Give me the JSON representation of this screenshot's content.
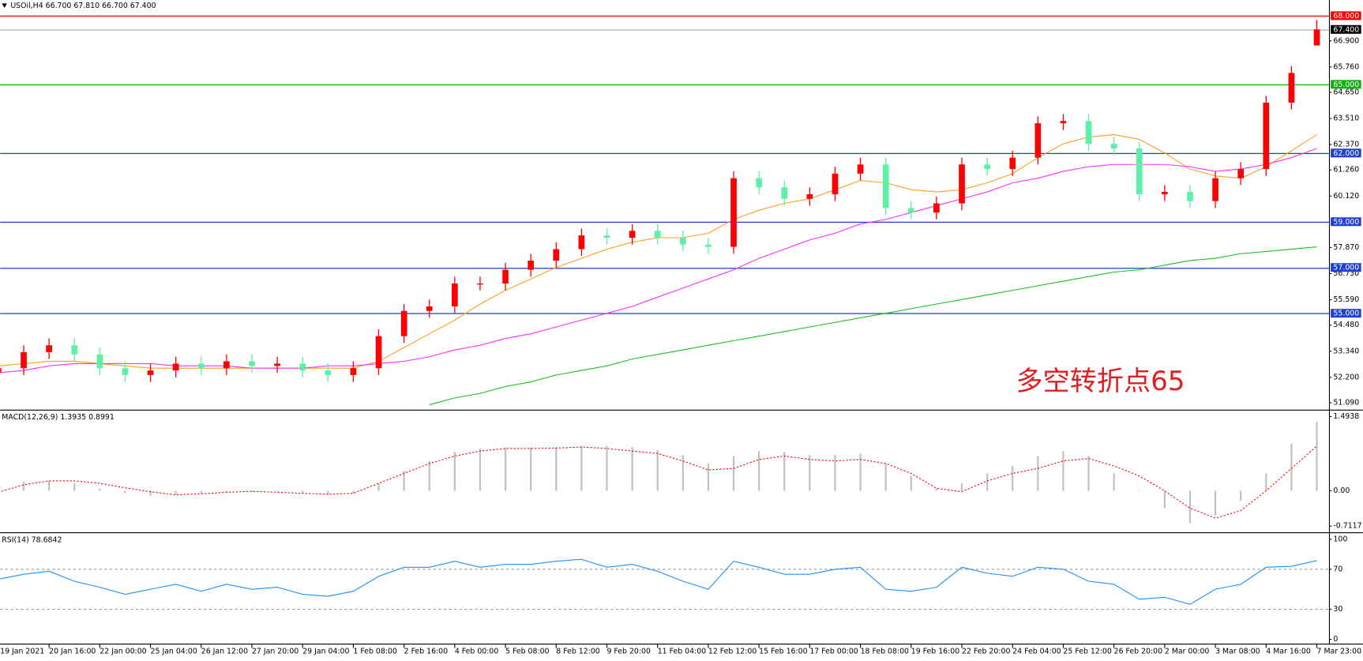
{
  "chart_data": [
    {
      "type": "candlestick",
      "title": "USOil,H4  66.700 67.810 66.700 67.400",
      "annotation": "多空转折点65",
      "categories": [
        "19 Jan 2021",
        null,
        "20 Jan 16:00",
        null,
        "22 Jan 00:00",
        null,
        "25 Jan 04:00",
        null,
        "26 Jan 12:00",
        null,
        "27 Jan 20:00",
        null,
        "29 Jan 04:00",
        null,
        "1 Feb 08:00",
        null,
        "2 Feb 16:00",
        null,
        "4 Feb 00:00",
        null,
        "5 Feb 08:00",
        null,
        "8 Feb 12:00",
        null,
        "9 Feb 20:00",
        null,
        "11 Feb 04:00",
        null,
        "12 Feb 12:00",
        null,
        "15 Feb 16:00",
        null,
        "17 Feb 00:00",
        null,
        "18 Feb 08:00",
        null,
        "19 Feb 16:00",
        null,
        "22 Feb 20:00",
        null,
        "24 Feb 04:00",
        null,
        "25 Feb 12:00",
        null,
        "26 Feb 20:00",
        null,
        "2 Mar 00:00",
        null,
        "3 Mar 08:00",
        null,
        "4 Mar 16:00",
        null,
        "7 Mar 23:00"
      ],
      "open": [
        52.4,
        52.6,
        53.3,
        53.6,
        53.2,
        52.6,
        52.3,
        52.5,
        52.8,
        52.6,
        52.9,
        52.7,
        52.8,
        52.5,
        52.3,
        52.6,
        54.0,
        55.1,
        55.3,
        56.3,
        56.3,
        56.9,
        57.3,
        57.8,
        58.4,
        58.3,
        58.6,
        58.3,
        58.0,
        57.9,
        60.9,
        60.5,
        60.0,
        60.2,
        61.1,
        61.5,
        59.6,
        59.4,
        59.8,
        61.5,
        61.3,
        61.8,
        63.3,
        63.4,
        62.4,
        62.2,
        60.2,
        60.3,
        59.9,
        60.9,
        61.3,
        64.2,
        66.7
      ],
      "high": [
        52.9,
        53.6,
        53.9,
        53.9,
        53.5,
        52.9,
        52.8,
        53.1,
        53.1,
        53.2,
        53.2,
        53.1,
        53.1,
        52.8,
        52.9,
        54.3,
        55.4,
        55.6,
        56.6,
        56.6,
        57.2,
        57.6,
        58.1,
        58.7,
        58.7,
        58.9,
        58.9,
        58.6,
        58.3,
        61.2,
        61.2,
        60.8,
        60.5,
        61.4,
        61.8,
        61.8,
        59.9,
        60.1,
        61.8,
        61.8,
        62.1,
        63.6,
        63.7,
        63.7,
        62.7,
        62.5,
        60.6,
        60.6,
        61.2,
        61.6,
        64.5,
        65.8,
        67.81
      ],
      "low": [
        52.1,
        52.3,
        53.0,
        52.9,
        52.3,
        52.0,
        52.0,
        52.2,
        52.3,
        52.3,
        52.4,
        52.4,
        52.2,
        52.0,
        52.0,
        52.3,
        53.7,
        54.8,
        55.0,
        56.0,
        56.0,
        56.6,
        57.0,
        57.5,
        58.0,
        58.0,
        58.0,
        57.7,
        57.6,
        57.6,
        60.2,
        59.7,
        59.7,
        59.9,
        60.8,
        59.3,
        59.1,
        59.1,
        59.5,
        61.0,
        61.0,
        61.5,
        63.0,
        62.1,
        61.9,
        59.9,
        59.9,
        59.6,
        59.6,
        60.6,
        61.0,
        63.9,
        66.7
      ],
      "close": [
        52.6,
        53.3,
        53.6,
        53.2,
        52.6,
        52.3,
        52.5,
        52.8,
        52.6,
        52.9,
        52.7,
        52.8,
        52.5,
        52.3,
        52.6,
        54.0,
        55.1,
        55.3,
        56.3,
        56.3,
        56.9,
        57.3,
        57.8,
        58.4,
        58.3,
        58.6,
        58.3,
        58.0,
        57.9,
        60.9,
        60.5,
        60.0,
        60.2,
        61.1,
        61.5,
        59.6,
        59.4,
        59.8,
        61.5,
        61.3,
        61.8,
        63.3,
        63.4,
        62.4,
        62.2,
        60.2,
        60.3,
        59.9,
        60.9,
        61.3,
        64.2,
        65.5,
        67.4
      ],
      "up_color": "#ff0000",
      "down_color": "#5ef0a6",
      "overlays": [
        {
          "color": "#ffa020",
          "values": [
            52.7,
            52.8,
            52.9,
            52.9,
            52.8,
            52.7,
            52.6,
            52.6,
            52.6,
            52.6,
            52.6,
            52.6,
            52.6,
            52.6,
            52.6,
            52.9,
            53.5,
            54.1,
            54.7,
            55.4,
            56.0,
            56.5,
            57.0,
            57.4,
            57.8,
            58.1,
            58.3,
            58.3,
            58.5,
            59.1,
            59.5,
            59.8,
            60.0,
            60.4,
            60.8,
            60.7,
            60.4,
            60.3,
            60.4,
            60.7,
            61.1,
            61.8,
            62.4,
            62.7,
            62.8,
            62.6,
            62.0,
            61.3,
            61.0,
            60.9,
            61.4,
            62.1,
            62.8
          ]
        },
        {
          "color": "#ff30ff",
          "values": [
            52.4,
            52.5,
            52.7,
            52.8,
            52.8,
            52.8,
            52.8,
            52.7,
            52.7,
            52.7,
            52.6,
            52.6,
            52.6,
            52.7,
            52.7,
            52.8,
            52.9,
            53.1,
            53.4,
            53.6,
            53.9,
            54.1,
            54.4,
            54.7,
            55.0,
            55.3,
            55.7,
            56.1,
            56.5,
            56.9,
            57.4,
            57.8,
            58.2,
            58.5,
            58.9,
            59.1,
            59.4,
            59.7,
            60.0,
            60.3,
            60.7,
            60.9,
            61.2,
            61.4,
            61.5,
            61.5,
            61.5,
            61.4,
            61.2,
            61.3,
            61.5,
            61.8,
            62.2
          ]
        },
        {
          "color": "#20c020",
          "values": [
            null,
            null,
            null,
            null,
            null,
            null,
            null,
            null,
            null,
            null,
            null,
            null,
            null,
            null,
            null,
            null,
            null,
            51.0,
            51.3,
            51.5,
            51.8,
            52.0,
            52.3,
            52.5,
            52.7,
            53.0,
            53.2,
            53.4,
            53.6,
            53.8,
            54.0,
            54.2,
            54.4,
            54.6,
            54.8,
            55.0,
            55.2,
            55.4,
            55.6,
            55.8,
            56.0,
            56.2,
            56.4,
            56.6,
            56.8,
            56.9,
            57.1,
            57.3,
            57.4,
            57.6,
            57.7,
            57.8,
            57.9
          ]
        }
      ],
      "levels": [
        {
          "value": 68.0,
          "label": "68.000",
          "color": "#ff0000",
          "box": "#ff0000"
        },
        {
          "value": 67.4,
          "label": "67.400",
          "color": "#a8b0b8",
          "box": "#000000"
        },
        {
          "value": 65.0,
          "label": "65.000",
          "color": "#10b010",
          "box": "#10b010"
        },
        {
          "value": 62.0,
          "label": "62.000",
          "color": "#2040d0",
          "box": "#2040d0"
        },
        {
          "value": 59.0,
          "label": "59.000",
          "color": "#2040d0",
          "box": "#2040d0"
        },
        {
          "value": 57.0,
          "label": "57.000",
          "color": "#2040d0",
          "box": "#2040d0"
        },
        {
          "value": 55.0,
          "label": "55.000",
          "color": "#2040d0",
          "box": "#2040d0"
        }
      ],
      "ylim": [
        50.826,
        68.686
      ],
      "yticks": [
        {
          "value": 66.9,
          "label": "66.900"
        },
        {
          "value": 65.76,
          "label": "65.760"
        },
        {
          "value": 64.65,
          "label": "64.650"
        },
        {
          "value": 63.51,
          "label": "63.510"
        },
        {
          "value": 62.37,
          "label": "62.370"
        },
        {
          "value": 61.26,
          "label": "61.260"
        },
        {
          "value": 60.12,
          "label": "60.120"
        },
        {
          "value": 57.87,
          "label": "57.870"
        },
        {
          "value": 56.73,
          "label": "56.730"
        },
        {
          "value": 55.59,
          "label": "55.590"
        },
        {
          "value": 54.48,
          "label": "54.480"
        },
        {
          "value": 53.34,
          "label": "53.340"
        },
        {
          "value": 52.2,
          "label": "52.200"
        },
        {
          "value": 51.09,
          "label": "51.090"
        }
      ]
    },
    {
      "type": "macd",
      "title": "MACD(12,26,9) 1.3935 0.8991",
      "histogram": [
        0.12,
        0.18,
        0.2,
        0.15,
        0.05,
        -0.05,
        -0.1,
        -0.08,
        -0.05,
        -0.03,
        -0.02,
        -0.02,
        -0.05,
        -0.08,
        -0.05,
        0.15,
        0.4,
        0.6,
        0.78,
        0.85,
        0.87,
        0.87,
        0.88,
        0.9,
        0.9,
        0.88,
        0.82,
        0.72,
        0.55,
        0.7,
        0.8,
        0.78,
        0.72,
        0.72,
        0.75,
        0.55,
        0.3,
        0.05,
        0.15,
        0.35,
        0.5,
        0.7,
        0.8,
        0.7,
        0.35,
        0.0,
        -0.35,
        -0.65,
        -0.5,
        -0.2,
        0.35,
        0.95,
        1.39
      ],
      "signal": [
        -0.03,
        0.12,
        0.2,
        0.2,
        0.15,
        0.06,
        -0.02,
        -0.08,
        -0.06,
        -0.03,
        -0.01,
        -0.03,
        -0.05,
        -0.07,
        -0.05,
        0.15,
        0.35,
        0.55,
        0.7,
        0.8,
        0.85,
        0.85,
        0.86,
        0.88,
        0.85,
        0.8,
        0.75,
        0.6,
        0.42,
        0.45,
        0.63,
        0.7,
        0.63,
        0.6,
        0.63,
        0.55,
        0.35,
        0.05,
        -0.02,
        0.2,
        0.35,
        0.45,
        0.6,
        0.65,
        0.5,
        0.3,
        0.0,
        -0.35,
        -0.55,
        -0.4,
        0.0,
        0.45,
        0.9
      ],
      "hist_color": "#c0c0c0",
      "signal_color": "#ff0000",
      "ylim": [
        -0.835,
        1.598
      ],
      "yticks": [
        1.4938,
        {
          "value": 0,
          "label": "0.00"
        },
        -0.7117
      ]
    },
    {
      "type": "line",
      "title": "RSI(14) 78.6842",
      "values": [
        60,
        65,
        68,
        58,
        52,
        45,
        50,
        55,
        48,
        55,
        50,
        52,
        45,
        43,
        48,
        63,
        72,
        72,
        78,
        72,
        75,
        75,
        78,
        80,
        72,
        75,
        68,
        58,
        50,
        78,
        72,
        65,
        65,
        70,
        72,
        50,
        48,
        52,
        72,
        66,
        63,
        72,
        70,
        58,
        55,
        40,
        42,
        35,
        50,
        55,
        72,
        73,
        78.68
      ],
      "color": "#1e90ff",
      "levels": [
        70,
        30
      ],
      "ylim": [
        -4.3,
        105.2
      ],
      "yticks": [
        100,
        70,
        30,
        0
      ]
    }
  ]
}
